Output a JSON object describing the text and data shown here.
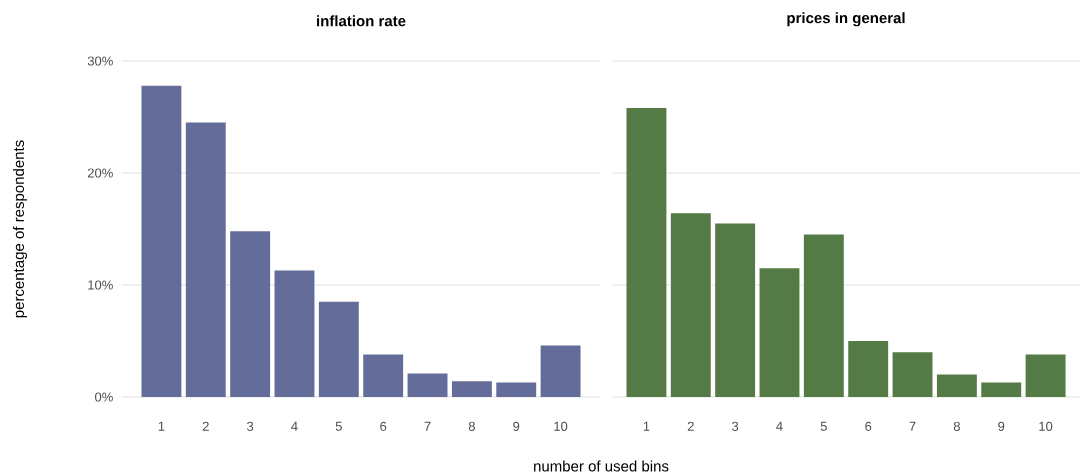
{
  "chart_data": [
    {
      "type": "bar",
      "title": "inflation rate",
      "xlabel": "number of used bins",
      "ylabel": "percentage of respondents",
      "categories": [
        "1",
        "2",
        "3",
        "4",
        "5",
        "6",
        "7",
        "8",
        "9",
        "10"
      ],
      "values": [
        27.8,
        24.5,
        14.8,
        11.3,
        8.5,
        3.8,
        2.1,
        1.4,
        1.3,
        4.6
      ],
      "color": "#646d9a",
      "ylim": [
        0,
        30
      ],
      "yticks": [
        {
          "value": 0,
          "label": "0%"
        },
        {
          "value": 10,
          "label": "10%"
        },
        {
          "value": 20,
          "label": "20%"
        },
        {
          "value": 30,
          "label": "30%"
        }
      ],
      "grid": "y"
    },
    {
      "type": "bar",
      "title": "prices in general",
      "categories": [
        "1",
        "2",
        "3",
        "4",
        "5",
        "6",
        "7",
        "8",
        "9",
        "10"
      ],
      "values": [
        25.8,
        16.4,
        15.5,
        11.5,
        14.5,
        5.0,
        4.0,
        2.0,
        1.3,
        3.8
      ],
      "color": "#547b45",
      "ylim": [
        0,
        30
      ],
      "yticks": [
        {
          "value": 0,
          "label": null
        },
        {
          "value": 10,
          "label": null
        },
        {
          "value": 20,
          "label": null
        },
        {
          "value": 30,
          "label": null
        }
      ],
      "grid": "y",
      "tick_labels": "x"
    }
  ]
}
